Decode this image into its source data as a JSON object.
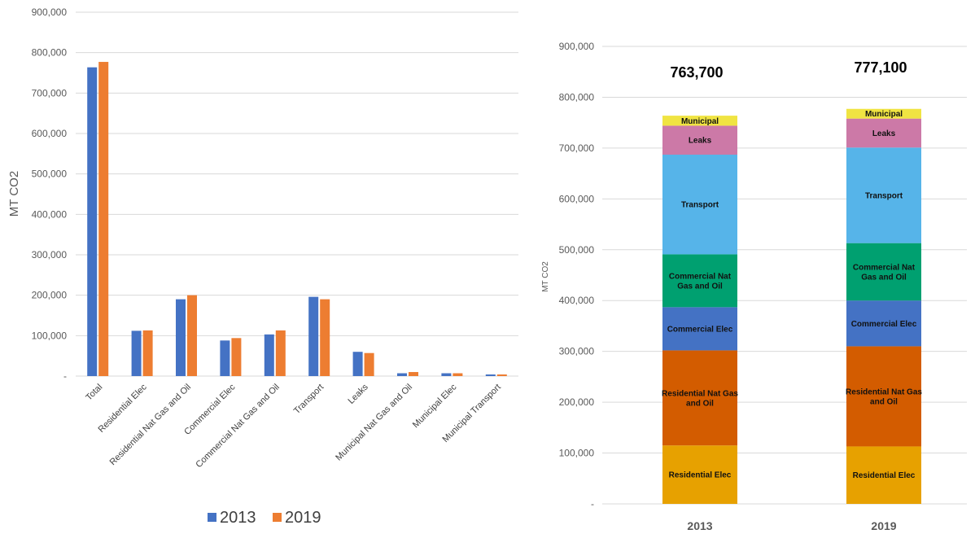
{
  "chart_data": [
    {
      "type": "bar",
      "title": "",
      "xlabel": "",
      "ylabel": "MT CO2",
      "ylim": [
        0,
        900000
      ],
      "y_ticks": [
        "-",
        "100,000",
        "200,000",
        "300,000",
        "400,000",
        "500,000",
        "600,000",
        "700,000",
        "800,000",
        "900,000"
      ],
      "grid": true,
      "legend": "bottom",
      "categories": [
        "Total",
        "Residential Elec",
        "Residential Nat Gas and Oil",
        "Commercial Elec",
        "Commercial Nat Gas and Oil",
        "Transport",
        "Leaks",
        "Municipal Nat Gas and Oil",
        "Municipal Elec",
        "Municipal Transport"
      ],
      "series": [
        {
          "name": "2013",
          "color": "#4472c4",
          "values": [
            763700,
            112000,
            190000,
            88000,
            103000,
            196000,
            60000,
            7000,
            7000,
            4000
          ]
        },
        {
          "name": "2019",
          "color": "#ed7d31",
          "values": [
            777100,
            113000,
            200000,
            94000,
            113000,
            190000,
            57000,
            10000,
            7000,
            4000
          ]
        }
      ]
    },
    {
      "type": "bar",
      "stacked": true,
      "title": "",
      "xlabel": "",
      "ylabel": "MT CO2",
      "ylim": [
        0,
        900000
      ],
      "y_ticks": [
        "-",
        "100,000",
        "200,000",
        "300,000",
        "400,000",
        "500,000",
        "600,000",
        "700,000",
        "800,000",
        "900,000"
      ],
      "grid": true,
      "categories": [
        "2013",
        "2019"
      ],
      "totals": [
        "763,700",
        "777,100"
      ],
      "series": [
        {
          "name": "Residential Elec",
          "label_lines": [
            "Residential Elec"
          ],
          "color": "#e7a100",
          "values": [
            115000,
            113000
          ]
        },
        {
          "name": "Residential Nat Gas and Oil",
          "label_lines": [
            "Residential Nat Gas",
            "and Oil"
          ],
          "color": "#d35c00",
          "values": [
            187000,
            197000
          ]
        },
        {
          "name": "Commercial Elec",
          "label_lines": [
            "Commercial Elec"
          ],
          "color": "#4472c4",
          "values": [
            85000,
            90000
          ]
        },
        {
          "name": "Commercial Nat Gas and Oil",
          "label_lines": [
            "Commercial Nat",
            "Gas and Oil"
          ],
          "color": "#00a070",
          "values": [
            104000,
            113000
          ]
        },
        {
          "name": "Transport",
          "label_lines": [
            "Transport"
          ],
          "color": "#56b4e9",
          "values": [
            196000,
            188000
          ]
        },
        {
          "name": "Leaks",
          "label_lines": [
            "Leaks"
          ],
          "color": "#cc79a7",
          "values": [
            57000,
            57000
          ]
        },
        {
          "name": "Municipal",
          "label_lines": [
            "Municipal"
          ],
          "color": "#f0e442",
          "values": [
            19700,
            19100
          ]
        }
      ]
    }
  ]
}
